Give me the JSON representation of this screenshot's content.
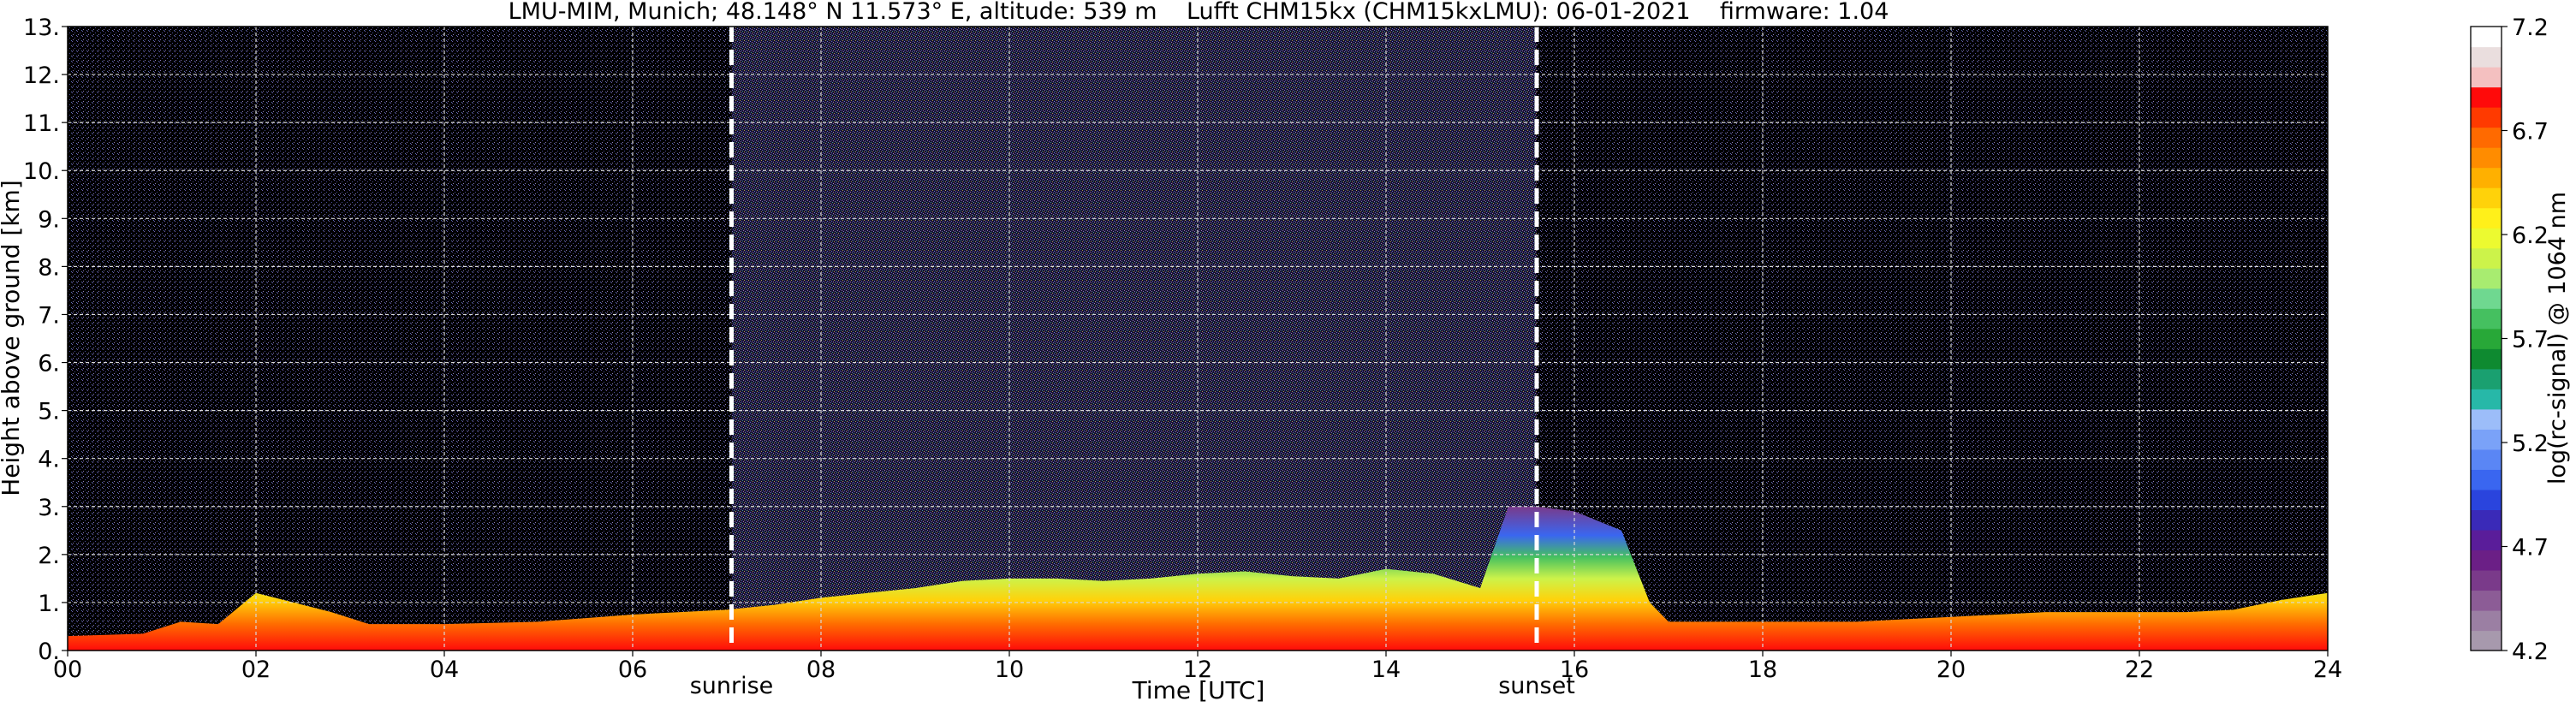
{
  "chart_data": {
    "type": "heatmap",
    "title": "LMU-MIM, Munich; 48.148° N 11.573° E, altitude: 539 m    Lufft CHM15kx (CHM15kxLMU): 06-01-2021    firmware: 1.04",
    "xlabel": "Time [UTC]",
    "ylabel": "Height above ground [km]",
    "xlim": [
      0,
      24
    ],
    "ylim": [
      0,
      13
    ],
    "x_ticks": [
      "00",
      "02",
      "04",
      "06",
      "08",
      "10",
      "12",
      "14",
      "16",
      "18",
      "20",
      "22",
      "24"
    ],
    "y_ticks": [
      "0.",
      "1.",
      "2.",
      "3.",
      "4.",
      "5.",
      "6.",
      "7.",
      "8.",
      "9.",
      "10.",
      "11.",
      "12.",
      "13."
    ],
    "grid": true,
    "events": [
      {
        "label": "sunrise",
        "time": 7.05
      },
      {
        "label": "sunset",
        "time": 15.6
      }
    ],
    "colorbar": {
      "label": "log(rc-signal) @ 1064 nm",
      "range": [
        4.2,
        7.2
      ],
      "ticks": [
        "4.2",
        "4.7",
        "5.2",
        "5.7",
        "6.2",
        "6.7",
        "7.2"
      ],
      "colors": [
        "#a799ad",
        "#9b7fa3",
        "#8c5c96",
        "#7a3a8a",
        "#6b1f86",
        "#5a1d9a",
        "#3a2ab8",
        "#2a44dd",
        "#3a66f0",
        "#5a86f5",
        "#7aa2f8",
        "#9cbdf9",
        "#27b8a8",
        "#1aa070",
        "#0e8a30",
        "#28a838",
        "#45c060",
        "#6fd890",
        "#a8ec70",
        "#ccf34a",
        "#ecfa30",
        "#fff01a",
        "#ffd20a",
        "#ffb000",
        "#ff8c00",
        "#ff6a00",
        "#ff3a00",
        "#ff0a0a",
        "#f4c0c0",
        "#eadede",
        "#ffffff"
      ]
    },
    "layer_profile": {
      "time": [
        0,
        0.8,
        1.2,
        1.6,
        2.0,
        2.4,
        2.8,
        3.2,
        4.0,
        5.0,
        6.0,
        7.0,
        7.5,
        8.0,
        8.5,
        9.0,
        9.5,
        10.0,
        10.5,
        11.0,
        11.5,
        12.0,
        12.5,
        13.0,
        13.5,
        14.0,
        14.5,
        15.0,
        15.3,
        15.6,
        16.0,
        16.5,
        16.8,
        17.0,
        17.5,
        18.0,
        18.5,
        19.0,
        19.5,
        20.0,
        20.5,
        21.0,
        21.5,
        22.0,
        22.5,
        23.0,
        23.5,
        24.0
      ],
      "top_km": [
        0.3,
        0.35,
        0.6,
        0.55,
        1.2,
        1.0,
        0.8,
        0.55,
        0.55,
        0.6,
        0.75,
        0.85,
        0.95,
        1.1,
        1.2,
        1.3,
        1.45,
        1.5,
        1.5,
        1.45,
        1.5,
        1.6,
        1.65,
        1.55,
        1.5,
        1.7,
        1.6,
        1.3,
        3.0,
        3.0,
        2.9,
        2.5,
        1.0,
        0.6,
        0.6,
        0.6,
        0.6,
        0.6,
        0.65,
        0.7,
        0.75,
        0.8,
        0.8,
        0.8,
        0.8,
        0.85,
        1.05,
        1.2
      ]
    }
  }
}
